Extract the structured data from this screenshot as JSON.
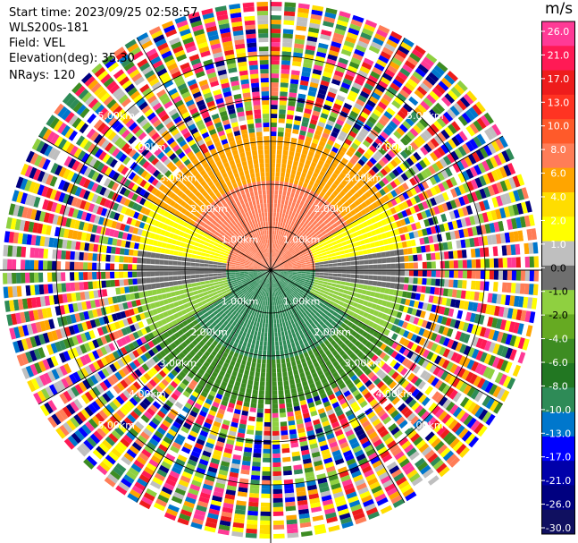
{
  "header": {
    "start_time": "Start time: 2023/09/25 02:58:57",
    "instrument": "WLS200s-181",
    "field": "Field: VEL",
    "elevation": "Elevation(deg): 35.30",
    "nrays": "NRays: 120"
  },
  "chart_data": {
    "type": "ppi",
    "field": "VEL",
    "nrays": 120,
    "elevation_deg": 35.3,
    "range_ring_labels": [
      "1.00km",
      "2.00km",
      "3.00km",
      "4.00km",
      "5.00km"
    ],
    "range_rings_km": [
      1,
      2,
      3,
      4,
      5
    ],
    "colorbar": {
      "unit": "m/s",
      "ticks": [
        "26.0",
        "21.0",
        "17.0",
        "13.0",
        "10.0",
        "8.0",
        "6.0",
        "4.0",
        "2.0",
        "1.0",
        "0.0",
        "-1.0",
        "-2.0",
        "-4.0",
        "-6.0",
        "-8.0",
        "-10.0",
        "-13.0",
        "-17.0",
        "-21.0",
        "-26.0",
        "-30.0"
      ],
      "colors": [
        "#ff3a96",
        "#ff1a55",
        "#ee1c1c",
        "#ff3322",
        "#ff5a2a",
        "#ff7d57",
        "#ffa500",
        "#ffdd00",
        "#ffff00",
        "#bfbfbf",
        "#6f6f6f",
        "#8fd040",
        "#66aa22",
        "#3d8c22",
        "#227722",
        "#2e8b57",
        "#0077cc",
        "#0000ff",
        "#0000aa",
        "#000080",
        "#101060"
      ]
    },
    "range_bands_km": [
      {
        "from": 0.0,
        "to": 1.1,
        "sector": "north",
        "color": "#ff7d57"
      },
      {
        "from": 0.0,
        "to": 1.1,
        "sector": "south",
        "color": "#2e8b57"
      },
      {
        "from": 1.1,
        "to": 2.9,
        "sector": "north",
        "color": "#ffa500"
      },
      {
        "from": 1.1,
        "to": 2.9,
        "sector": "south",
        "color": "#3d8c22"
      }
    ]
  }
}
